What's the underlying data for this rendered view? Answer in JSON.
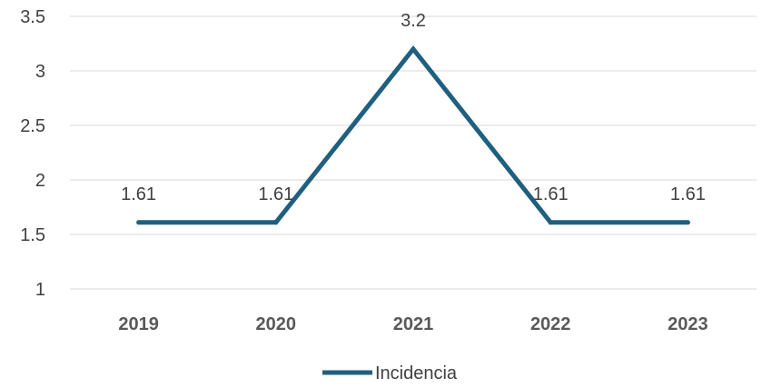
{
  "chart_data": {
    "type": "line",
    "title": "",
    "xlabel": "",
    "ylabel": "",
    "categories": [
      "2019",
      "2020",
      "2021",
      "2022",
      "2023"
    ],
    "series": [
      {
        "name": "Incidencia",
        "values": [
          1.61,
          1.61,
          3.2,
          1.61,
          1.61
        ],
        "data_labels": [
          "1.61",
          "1.61",
          "3.2",
          "1.61",
          "1.61"
        ],
        "color": "#1f5f7f"
      }
    ],
    "ylim": [
      1,
      3.5
    ],
    "y_ticks": [
      "1",
      "1.5",
      "2",
      "2.5",
      "3",
      "3.5"
    ],
    "grid": true,
    "legend": "bottom"
  }
}
